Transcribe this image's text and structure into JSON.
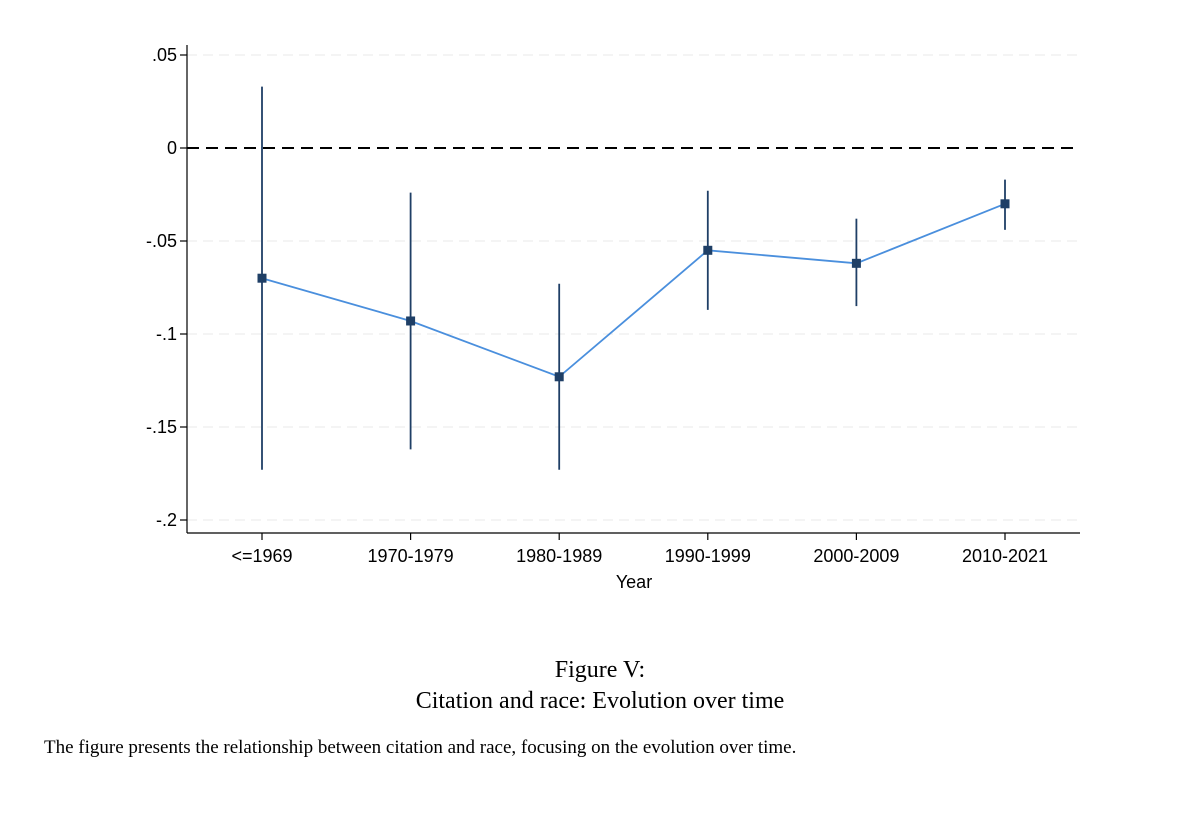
{
  "chart_data": {
    "type": "line",
    "title": "",
    "xlabel": "Year",
    "ylabel": "",
    "categories": [
      "<=1969",
      "1970-1979",
      "1980-1989",
      "1990-1999",
      "2000-2009",
      "2010-2021"
    ],
    "series": [
      {
        "values": [
          -0.07,
          -0.093,
          -0.123,
          -0.055,
          -0.062,
          -0.03
        ],
        "ci_low": [
          -0.173,
          -0.162,
          -0.173,
          -0.087,
          -0.085,
          -0.044
        ],
        "ci_high": [
          0.033,
          -0.024,
          -0.073,
          -0.023,
          -0.038,
          -0.017
        ]
      }
    ],
    "ylim": [
      -0.2,
      0.05
    ],
    "yticks": [
      0.05,
      0,
      -0.05,
      -0.1,
      -0.15,
      -0.2
    ],
    "ytick_labels": [
      ".05",
      "0",
      "-.05",
      "-.1",
      "-.15",
      "-.2"
    ],
    "reference_line": 0,
    "grid": true,
    "colors": {
      "line": "#4a8fdd",
      "marker": "#1f3f66",
      "ci": "#1f3f66",
      "grid": "#e8e8e8",
      "reference": "#000000"
    }
  },
  "caption": {
    "label": "Figure V:",
    "title": "Citation and race: Evolution over time",
    "note": "The figure presents the relationship between citation and race, focusing on the evolution over time."
  }
}
